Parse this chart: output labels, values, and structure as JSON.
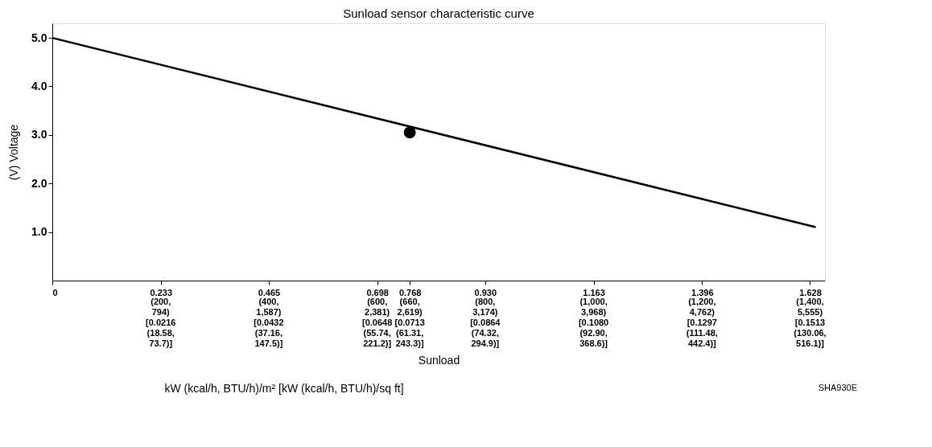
{
  "chart_data": {
    "type": "line",
    "title": "Sunload sensor characteristic curve",
    "xlabel": "Sunload",
    "ylabel": "(V)  Voltage",
    "annotations": [
      "(200, 794) [0.0216 (18.58, 73.7)]",
      "(400, 1,587) [0.0432 (37.16, 147.5)]",
      "(600, 2,381) [0.0648 (55.74, 221.2)]",
      "(660, 2,619) [0.0713 (61.31, 243.3)]",
      "(800, 3,174) [0.0864 (74.32, 294.9)]",
      "(1,000, 3,968) [0.1080 (92.90, 368.6)]",
      "(1,200, 4,762) [0.1297 (111.48, 442.4)]",
      "(1,400, 5,555) [0.1513 (130.06, 516.1)]",
      "kW (kcal/h, BTU/h)/m²  [kW (kcal/h, BTU/h)/sq ft]",
      "SHA930E"
    ],
    "series": [
      {
        "color": "#000000",
        "x": [
          0,
          1.64
        ],
        "values": [
          5.0,
          1.1
        ],
        "marker": "none",
        "line_style": "solid"
      },
      {
        "type": "scatter",
        "color": "#000000",
        "x": [
          0.768
        ],
        "values": [
          3.05
        ],
        "marker": "circle"
      }
    ],
    "xlim": [
      0,
      1.66
    ],
    "ylim": [
      0,
      5.3
    ],
    "xticks": [
      0,
      0.233,
      0.465,
      0.698,
      0.768,
      {
        "value": 0.93,
        "label": "0.930"
      },
      1.163,
      1.396,
      1.628
    ],
    "yticks": [
      {
        "value": 1,
        "label": "1.0"
      },
      {
        "value": 2,
        "label": "2.0"
      },
      {
        "value": 3,
        "label": "3.0"
      },
      {
        "value": 4,
        "label": "4.0"
      },
      {
        "value": 5,
        "label": "5.0"
      }
    ],
    "grid": false
  }
}
